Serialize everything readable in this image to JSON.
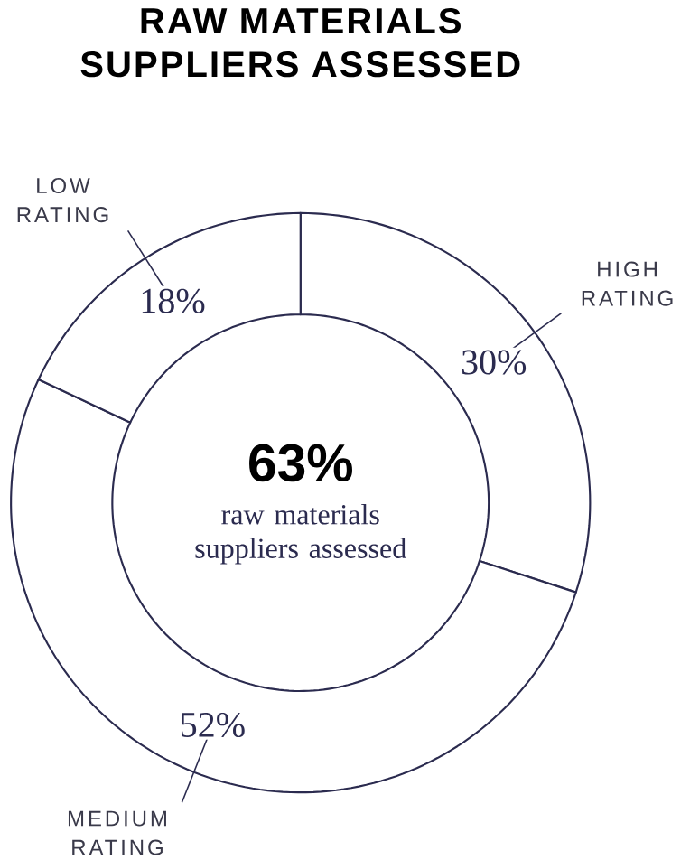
{
  "chart_data": {
    "type": "donut",
    "title": "RAW MATERIALS SUPPLIERS ASSESSED",
    "categories": [
      "HIGH RATING",
      "MEDIUM RATING",
      "LOW RATING"
    ],
    "values": [
      30,
      52,
      18
    ],
    "colors": [
      "#ffffff",
      "#ffffff",
      "#ffffff"
    ],
    "value_labels": [
      "30%",
      "52%",
      "18%"
    ],
    "annotations": [
      "63%",
      "raw materials suppliers assessed"
    ]
  }
}
